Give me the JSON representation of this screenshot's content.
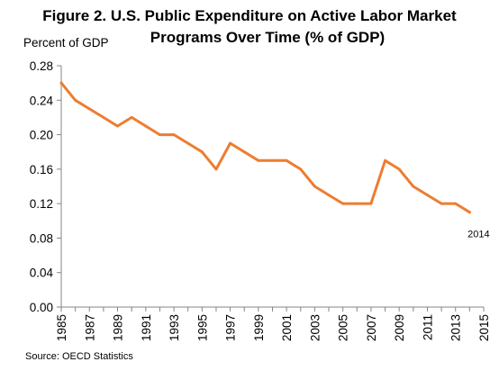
{
  "chart_data": {
    "type": "line",
    "title_line1": "Figure 2. U.S. Public Expenditure on Active Labor Market",
    "title_line2": "Programs Over Time (% of GDP)",
    "ylabel": "Percent of GDP",
    "xlabel": "",
    "source": "Source: OECD Statistics",
    "xlim": [
      1985,
      2015
    ],
    "ylim": [
      0,
      0.28
    ],
    "x_ticks": [
      1985,
      1987,
      1989,
      1991,
      1993,
      1995,
      1997,
      1999,
      2001,
      2003,
      2005,
      2007,
      2009,
      2011,
      2013,
      2015
    ],
    "y_ticks": [
      "0.00",
      "0.04",
      "0.08",
      "0.12",
      "0.16",
      "0.20",
      "0.24",
      "0.28"
    ],
    "grid": false,
    "line_color": "#ED7D31",
    "series": [
      {
        "x": [
          1985,
          1986,
          1987,
          1988,
          1989,
          1990,
          1991,
          1992,
          1993,
          1994,
          1995,
          1996,
          1997,
          1998,
          1999,
          2000,
          2001,
          2002,
          2003,
          2004,
          2005,
          2006,
          2007,
          2008,
          2009,
          2010,
          2011,
          2012,
          2013,
          2014
        ],
        "values": [
          0.26,
          0.24,
          0.23,
          0.22,
          0.21,
          0.22,
          0.21,
          0.2,
          0.2,
          0.19,
          0.18,
          0.16,
          0.19,
          0.18,
          0.17,
          0.17,
          0.17,
          0.16,
          0.14,
          0.13,
          0.12,
          0.12,
          0.12,
          0.17,
          0.16,
          0.14,
          0.13,
          0.12,
          0.12,
          0.11
        ]
      }
    ],
    "annotation": {
      "text": "2014",
      "x": 2014,
      "y": 0.11
    }
  }
}
